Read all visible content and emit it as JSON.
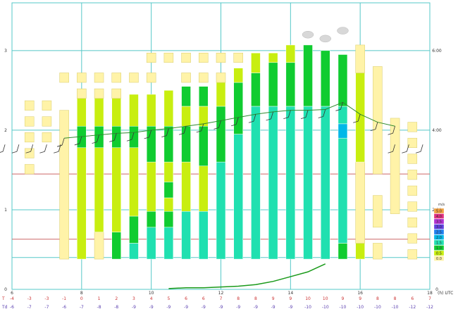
{
  "colors": {
    "grid": "#56c8c8",
    "refline": "#cc6666",
    "windline": "#2e8b2e",
    "wind_barb": "#333333",
    "bottom_curve": "#1a9a1a",
    "t_row_label": "#cc3333",
    "td_row_label": "#5a3fb0",
    "cloud": "#d8d8d8",
    "pale": "#fff3a8",
    "pale_edge": "#d8cc6a"
  },
  "chart_data": {
    "type": "heatmap",
    "title": "",
    "xlabel": "(h) UTC",
    "x_axis_label": "(h) UTC",
    "x_ticks": [
      6,
      8,
      10,
      12,
      14,
      16,
      18
    ],
    "xlim": [
      6,
      18
    ],
    "y_left_ticks": [
      0,
      1,
      2,
      3
    ],
    "y_right_ticks": [
      "0",
      "2:00",
      "4:00",
      "6:00"
    ],
    "ylim": [
      0,
      3.6
    ],
    "legend": {
      "title": "m/s",
      "entries": [
        {
          "label": "5.0",
          "color": "#f0a040"
        },
        {
          "label": "4.0",
          "color": "#e03080"
        },
        {
          "label": "3.5",
          "color": "#b030d0"
        },
        {
          "label": "3.0",
          "color": "#6040e0"
        },
        {
          "label": "2.5",
          "color": "#2080f0"
        },
        {
          "label": "2.0",
          "color": "#00b8e8"
        },
        {
          "label": "1.5",
          "color": "#20e0b0"
        },
        {
          "label": "1.0",
          "color": "#10cc30"
        },
        {
          "label": "0.5",
          "color": "#c8ee10"
        },
        {
          "label": "0.0",
          "color": "#fff3a8"
        }
      ]
    },
    "columns": [
      {
        "x": 6.5,
        "segments": [
          {
            "y0": 1.45,
            "y1": 1.57,
            "level": 0
          },
          {
            "y0": 1.65,
            "y1": 1.77,
            "level": 0
          },
          {
            "y0": 1.85,
            "y1": 1.97,
            "level": 0
          },
          {
            "y0": 2.05,
            "y1": 2.17,
            "level": 0
          },
          {
            "y0": 2.25,
            "y1": 2.37,
            "level": 0
          }
        ]
      },
      {
        "x": 7.0,
        "segments": [
          {
            "y0": 1.85,
            "y1": 1.97,
            "level": 0
          },
          {
            "y0": 2.05,
            "y1": 2.17,
            "level": 0
          },
          {
            "y0": 2.25,
            "y1": 2.37,
            "level": 0
          }
        ]
      },
      {
        "x": 7.5,
        "segments": [
          {
            "y0": 0.38,
            "y1": 2.25,
            "level": 0
          },
          {
            "y0": 2.6,
            "y1": 2.72,
            "level": 0
          }
        ]
      },
      {
        "x": 8.0,
        "segments": [
          {
            "y0": 0.38,
            "y1": 1.78,
            "level": 1
          },
          {
            "y0": 1.78,
            "y1": 2.05,
            "level": 2
          },
          {
            "y0": 2.05,
            "y1": 2.4,
            "level": 1
          },
          {
            "y0": 2.4,
            "y1": 2.52,
            "level": 0
          },
          {
            "y0": 2.6,
            "y1": 2.72,
            "level": 0
          }
        ]
      },
      {
        "x": 8.5,
        "segments": [
          {
            "y0": 0.38,
            "y1": 0.72,
            "level": 0
          },
          {
            "y0": 0.72,
            "y1": 1.78,
            "level": 1
          },
          {
            "y0": 1.78,
            "y1": 2.05,
            "level": 2
          },
          {
            "y0": 2.05,
            "y1": 2.4,
            "level": 1
          },
          {
            "y0": 2.4,
            "y1": 2.52,
            "level": 0
          },
          {
            "y0": 2.6,
            "y1": 2.72,
            "level": 0
          }
        ]
      },
      {
        "x": 9.0,
        "segments": [
          {
            "y0": 0.38,
            "y1": 0.72,
            "level": 2
          },
          {
            "y0": 0.72,
            "y1": 1.78,
            "level": 1
          },
          {
            "y0": 1.78,
            "y1": 2.05,
            "level": 2
          },
          {
            "y0": 2.05,
            "y1": 2.4,
            "level": 1
          },
          {
            "y0": 2.4,
            "y1": 2.52,
            "level": 0
          },
          {
            "y0": 2.6,
            "y1": 2.72,
            "level": 0
          }
        ]
      },
      {
        "x": 9.5,
        "segments": [
          {
            "y0": 0.38,
            "y1": 0.58,
            "level": 3
          },
          {
            "y0": 0.58,
            "y1": 0.92,
            "level": 2
          },
          {
            "y0": 0.92,
            "y1": 1.78,
            "level": 1
          },
          {
            "y0": 1.78,
            "y1": 2.05,
            "level": 2
          },
          {
            "y0": 2.05,
            "y1": 2.45,
            "level": 1
          },
          {
            "y0": 2.6,
            "y1": 2.72,
            "level": 0
          }
        ]
      },
      {
        "x": 10.0,
        "segments": [
          {
            "y0": 0.38,
            "y1": 0.78,
            "level": 3
          },
          {
            "y0": 0.78,
            "y1": 0.98,
            "level": 2
          },
          {
            "y0": 0.98,
            "y1": 1.6,
            "level": 1
          },
          {
            "y0": 1.6,
            "y1": 2.05,
            "level": 2
          },
          {
            "y0": 2.05,
            "y1": 2.45,
            "level": 1
          },
          {
            "y0": 2.6,
            "y1": 2.72,
            "level": 0
          },
          {
            "y0": 2.85,
            "y1": 2.97,
            "level": 0
          }
        ]
      },
      {
        "x": 10.5,
        "segments": [
          {
            "y0": 0.38,
            "y1": 0.78,
            "level": 3
          },
          {
            "y0": 0.78,
            "y1": 0.98,
            "level": 2
          },
          {
            "y0": 0.98,
            "y1": 1.15,
            "level": 1
          },
          {
            "y0": 1.15,
            "y1": 1.35,
            "level": 2
          },
          {
            "y0": 1.35,
            "y1": 1.6,
            "level": 1
          },
          {
            "y0": 1.6,
            "y1": 2.05,
            "level": 2
          },
          {
            "y0": 2.05,
            "y1": 2.5,
            "level": 1
          },
          {
            "y0": 2.85,
            "y1": 2.97,
            "level": 0
          }
        ]
      },
      {
        "x": 11.0,
        "segments": [
          {
            "y0": 0.38,
            "y1": 0.98,
            "level": 3
          },
          {
            "y0": 0.98,
            "y1": 1.6,
            "level": 1
          },
          {
            "y0": 1.6,
            "y1": 2.05,
            "level": 2
          },
          {
            "y0": 2.05,
            "y1": 2.3,
            "level": 1
          },
          {
            "y0": 2.3,
            "y1": 2.55,
            "level": 2
          },
          {
            "y0": 2.6,
            "y1": 2.72,
            "level": 0
          },
          {
            "y0": 2.85,
            "y1": 2.97,
            "level": 0
          }
        ]
      },
      {
        "x": 11.5,
        "segments": [
          {
            "y0": 0.38,
            "y1": 0.98,
            "level": 3
          },
          {
            "y0": 0.98,
            "y1": 1.55,
            "level": 1
          },
          {
            "y0": 1.55,
            "y1": 2.05,
            "level": 2
          },
          {
            "y0": 2.05,
            "y1": 2.3,
            "level": 1
          },
          {
            "y0": 2.3,
            "y1": 2.55,
            "level": 2
          },
          {
            "y0": 2.6,
            "y1": 2.72,
            "level": 0
          },
          {
            "y0": 2.85,
            "y1": 2.97,
            "level": 0
          }
        ]
      },
      {
        "x": 12.0,
        "segments": [
          {
            "y0": 0.38,
            "y1": 1.6,
            "level": 3
          },
          {
            "y0": 1.6,
            "y1": 2.3,
            "level": 2
          },
          {
            "y0": 2.3,
            "y1": 2.6,
            "level": 1
          },
          {
            "y0": 2.6,
            "y1": 2.72,
            "level": 0
          },
          {
            "y0": 2.85,
            "y1": 2.97,
            "level": 0
          }
        ]
      },
      {
        "x": 12.5,
        "segments": [
          {
            "y0": 0.38,
            "y1": 1.95,
            "level": 3
          },
          {
            "y0": 1.95,
            "y1": 2.6,
            "level": 2
          },
          {
            "y0": 2.6,
            "y1": 2.78,
            "level": 1
          },
          {
            "y0": 2.85,
            "y1": 2.97,
            "level": 0
          }
        ]
      },
      {
        "x": 13.0,
        "segments": [
          {
            "y0": 0.38,
            "y1": 2.3,
            "level": 3
          },
          {
            "y0": 2.3,
            "y1": 2.72,
            "level": 2
          },
          {
            "y0": 2.72,
            "y1": 2.97,
            "level": 1
          }
        ]
      },
      {
        "x": 13.5,
        "segments": [
          {
            "y0": 0.38,
            "y1": 2.3,
            "level": 3
          },
          {
            "y0": 2.3,
            "y1": 2.85,
            "level": 2
          },
          {
            "y0": 2.85,
            "y1": 2.97,
            "level": 1
          }
        ]
      },
      {
        "x": 14.0,
        "segments": [
          {
            "y0": 0.38,
            "y1": 2.3,
            "level": 3
          },
          {
            "y0": 2.3,
            "y1": 2.85,
            "level": 2
          },
          {
            "y0": 2.85,
            "y1": 3.07,
            "level": 1
          }
        ]
      },
      {
        "x": 14.5,
        "segments": [
          {
            "y0": 0.38,
            "y1": 2.3,
            "level": 3
          },
          {
            "y0": 2.3,
            "y1": 3.07,
            "level": 2
          }
        ]
      },
      {
        "x": 15.0,
        "segments": [
          {
            "y0": 0.38,
            "y1": 2.3,
            "level": 3
          },
          {
            "y0": 2.3,
            "y1": 3.0,
            "level": 2
          }
        ]
      },
      {
        "x": 15.5,
        "segments": [
          {
            "y0": 0.38,
            "y1": 0.58,
            "level": 2
          },
          {
            "y0": 0.58,
            "y1": 1.9,
            "level": 3
          },
          {
            "y0": 1.9,
            "y1": 2.08,
            "level": 4
          },
          {
            "y0": 2.08,
            "y1": 2.3,
            "level": 3
          },
          {
            "y0": 2.3,
            "y1": 2.95,
            "level": 2
          }
        ]
      },
      {
        "x": 16.0,
        "segments": [
          {
            "y0": 0.38,
            "y1": 0.58,
            "level": 1
          },
          {
            "y0": 0.58,
            "y1": 1.6,
            "level": 0
          },
          {
            "y0": 1.6,
            "y1": 2.72,
            "level": 1
          },
          {
            "y0": 2.72,
            "y1": 3.07,
            "level": 0
          }
        ]
      },
      {
        "x": 16.5,
        "segments": [
          {
            "y0": 0.38,
            "y1": 0.58,
            "level": 0
          },
          {
            "y0": 0.78,
            "y1": 1.18,
            "level": 0
          },
          {
            "y0": 1.45,
            "y1": 2.8,
            "level": 0
          }
        ]
      },
      {
        "x": 17.0,
        "segments": [
          {
            "y0": 0.95,
            "y1": 2.15,
            "level": 0
          }
        ]
      },
      {
        "x": 17.5,
        "segments": [
          {
            "y0": 0.38,
            "y1": 0.5,
            "level": 0
          },
          {
            "y0": 0.58,
            "y1": 0.7,
            "level": 0
          },
          {
            "y0": 0.78,
            "y1": 0.9,
            "level": 0
          },
          {
            "y0": 0.98,
            "y1": 1.1,
            "level": 0
          },
          {
            "y0": 1.18,
            "y1": 1.3,
            "level": 0
          },
          {
            "y0": 1.38,
            "y1": 1.5,
            "level": 0
          },
          {
            "y0": 1.58,
            "y1": 1.7,
            "level": 0
          },
          {
            "y0": 1.78,
            "y1": 1.9,
            "level": 0
          },
          {
            "y0": 1.98,
            "y1": 2.1,
            "level": 0
          }
        ]
      }
    ],
    "clouds": [
      {
        "x": 14.5,
        "y": 3.2
      },
      {
        "x": 15.0,
        "y": 3.15
      },
      {
        "x": 15.5,
        "y": 3.25
      }
    ],
    "wind_line": {
      "x": [
        7.5,
        8.0,
        8.5,
        9.0,
        9.5,
        10.0,
        10.5,
        11.0,
        11.5,
        12.0,
        12.5,
        13.0,
        13.5,
        14.0,
        14.5,
        15.0,
        15.5,
        16.0,
        16.5,
        17.0
      ],
      "y": [
        1.9,
        1.92,
        1.94,
        1.96,
        1.97,
        2.0,
        2.02,
        2.05,
        2.08,
        2.12,
        2.16,
        2.2,
        2.23,
        2.25,
        2.25,
        2.26,
        2.35,
        2.2,
        2.1,
        2.05
      ]
    },
    "wind_barbs_y": 1.82,
    "wind_barbs_x": [
      5.8,
      6.2,
      6.6,
      7.0,
      7.4,
      17.0,
      17.4,
      17.8
    ],
    "ref_lines_y": [
      0.63,
      1.45
    ],
    "lower_ref_line_y": 0.4,
    "bottom_curve": {
      "x": [
        10.5,
        11.0,
        11.5,
        12.0,
        12.5,
        13.0,
        13.5,
        14.0,
        14.5,
        15.0
      ],
      "y": [
        0.01,
        0.02,
        0.02,
        0.03,
        0.04,
        0.06,
        0.1,
        0.16,
        0.22,
        0.32
      ]
    },
    "rows": {
      "t_label": "T",
      "td_label": "Td",
      "x": [
        6,
        6.5,
        7,
        7.5,
        8,
        8.5,
        9,
        9.5,
        10,
        10.5,
        11,
        11.5,
        12,
        12.5,
        13,
        13.5,
        14,
        14.5,
        15,
        15.5,
        16,
        16.5,
        17,
        17.5,
        18
      ],
      "t": [
        "-4",
        "-3",
        "-3",
        "-1",
        "0",
        "1",
        "2",
        "3",
        "4",
        "5",
        "6",
        "6",
        "7",
        "8",
        "8",
        "9",
        "9",
        "10",
        "10",
        "9",
        "9",
        "8",
        "8",
        "6",
        "7"
      ],
      "td": [
        "-6",
        "-7",
        "-7",
        "-6",
        "-7",
        "-8",
        "-8",
        "-9",
        "-9",
        "-9",
        "-9",
        "-9",
        "-9",
        "-9",
        "-9",
        "-9",
        "-9",
        "-10",
        "-10",
        "-10",
        "-10",
        "-10",
        "-10",
        "-12",
        "-12"
      ]
    }
  }
}
